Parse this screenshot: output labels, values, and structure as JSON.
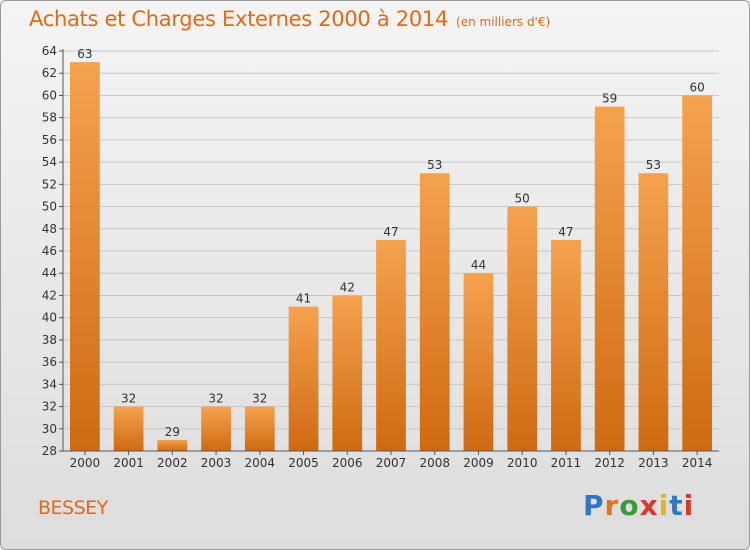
{
  "header": {
    "title": "Achats et Charges Externes 2000 à 2014",
    "subtitle": "(en milliers d'€)"
  },
  "footer": {
    "commune": "BESSEY",
    "brand": "Proxiti"
  },
  "colors": {
    "bar_top": "#f5a24e",
    "bar_bottom": "#cf6a12",
    "title": "#e06a17",
    "logo": [
      "#2f77c0",
      "#e8731a",
      "#3a9a3a",
      "#d83a2a",
      "#e0b81a",
      "#2f77c0",
      "#d83a2a"
    ]
  },
  "chart_data": {
    "type": "bar",
    "title": "Achats et Charges Externes 2000 à 2014",
    "subtitle": "(en milliers d'€)",
    "categories": [
      "2000",
      "2001",
      "2002",
      "2003",
      "2004",
      "2005",
      "2006",
      "2007",
      "2008",
      "2009",
      "2010",
      "2011",
      "2012",
      "2013",
      "2014"
    ],
    "values": [
      63,
      32,
      29,
      32,
      32,
      41,
      42,
      47,
      53,
      44,
      50,
      47,
      59,
      53,
      60
    ],
    "ylim": [
      28,
      64
    ],
    "ytick_step": 2,
    "grid": true,
    "data_labels": true,
    "legend": "none"
  }
}
